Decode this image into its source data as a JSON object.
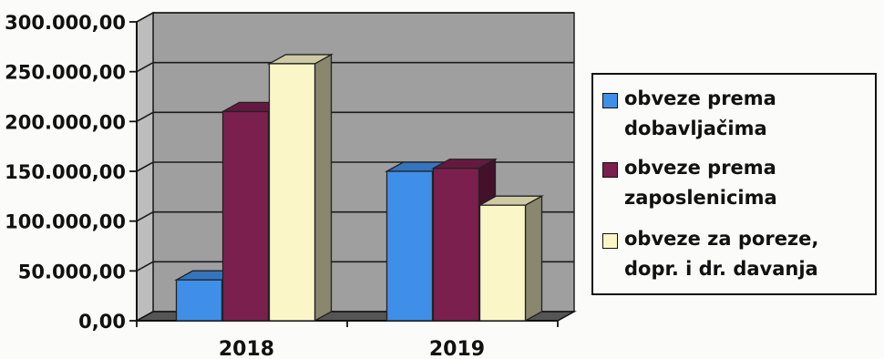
{
  "chart_data": {
    "type": "bar",
    "categories": [
      "2018",
      "2019"
    ],
    "series": [
      {
        "name": "obveze prema dobavljačima",
        "values": [
          41000,
          150000
        ],
        "color": "#3f8fe8"
      },
      {
        "name": "obveze prema zaposlenicima",
        "values": [
          210000,
          153000
        ],
        "color": "#7b1f4e"
      },
      {
        "name": "obveze za poreze, dopr. i dr. davanja",
        "values": [
          258000,
          116000
        ],
        "color": "#fbf6c8"
      }
    ],
    "ylim": [
      0,
      300000
    ],
    "yticks": [
      0,
      50000,
      100000,
      150000,
      200000,
      250000,
      300000
    ],
    "ytick_labels": [
      "0,00",
      "50.000,00",
      "100.000,00",
      "150.000,00",
      "200.000,00",
      "250.000,00",
      "300.000,00"
    ],
    "grid": true,
    "three_d": true,
    "legend_position": "right",
    "title": "",
    "xlabel": "",
    "ylabel": ""
  }
}
